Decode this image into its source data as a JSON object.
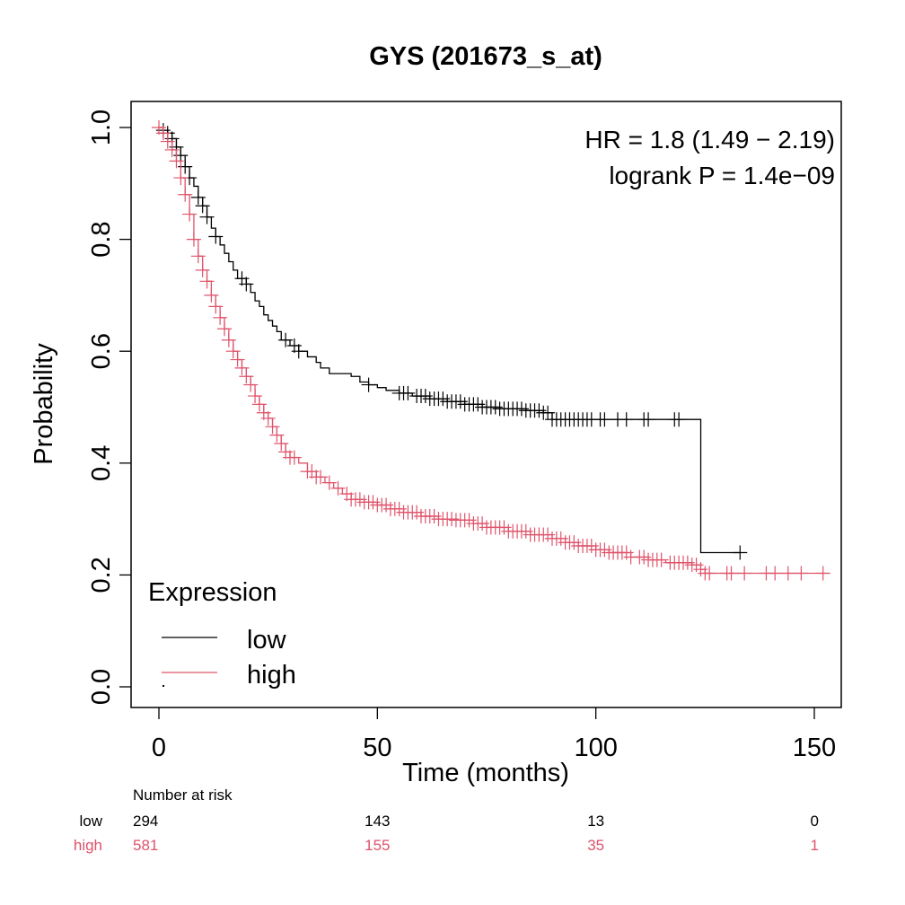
{
  "chart_data": {
    "type": "line",
    "subtype": "kaplan-meier",
    "title": "GYS (201673_s_at)",
    "xlabel": "Time (months)",
    "ylabel": "Probability",
    "xlim": [
      0,
      155
    ],
    "ylim": [
      0,
      1.0
    ],
    "x_ticks": [
      0,
      50,
      100,
      150
    ],
    "x_tick_labels": [
      "0",
      "50",
      "100",
      "150"
    ],
    "y_ticks": [
      0.0,
      0.2,
      0.4,
      0.6,
      0.8,
      1.0
    ],
    "y_tick_labels": [
      "0.0",
      "0.2",
      "0.4",
      "0.6",
      "0.8",
      "1.0"
    ],
    "grid": false,
    "annotations": {
      "hr": "HR = 1.8 (1.49 − 2.19)",
      "logrank": "logrank P = 1.4e−09"
    },
    "legend": {
      "title": "Expression",
      "position": "bottom-left",
      "entries": [
        {
          "label": "low",
          "color": "#000000"
        },
        {
          "label": "high",
          "color": "#DF536B"
        }
      ]
    },
    "series": [
      {
        "name": "low",
        "color": "#000000",
        "steps": [
          [
            0,
            1.0
          ],
          [
            1,
            0.995
          ],
          [
            2,
            0.99
          ],
          [
            3,
            0.98
          ],
          [
            4,
            0.965
          ],
          [
            5,
            0.95
          ],
          [
            6,
            0.93
          ],
          [
            7,
            0.91
          ],
          [
            8,
            0.895
          ],
          [
            9,
            0.875
          ],
          [
            10,
            0.86
          ],
          [
            11,
            0.84
          ],
          [
            12,
            0.82
          ],
          [
            13,
            0.805
          ],
          [
            14,
            0.79
          ],
          [
            15,
            0.775
          ],
          [
            16,
            0.76
          ],
          [
            17,
            0.745
          ],
          [
            18,
            0.73
          ],
          [
            20,
            0.72
          ],
          [
            21,
            0.705
          ],
          [
            22,
            0.69
          ],
          [
            23,
            0.68
          ],
          [
            24,
            0.665
          ],
          [
            25,
            0.655
          ],
          [
            26,
            0.645
          ],
          [
            27,
            0.635
          ],
          [
            28,
            0.62
          ],
          [
            30,
            0.61
          ],
          [
            32,
            0.6
          ],
          [
            34,
            0.59
          ],
          [
            36,
            0.58
          ],
          [
            37,
            0.57
          ],
          [
            39,
            0.56
          ],
          [
            44,
            0.555
          ],
          [
            46,
            0.545
          ],
          [
            48,
            0.54
          ],
          [
            50,
            0.535
          ],
          [
            52,
            0.53
          ],
          [
            55,
            0.525
          ],
          [
            58,
            0.52
          ],
          [
            62,
            0.515
          ],
          [
            66,
            0.51
          ],
          [
            70,
            0.505
          ],
          [
            74,
            0.5
          ],
          [
            78,
            0.497
          ],
          [
            84,
            0.494
          ],
          [
            88,
            0.49
          ],
          [
            90,
            0.478
          ],
          [
            124,
            0.478
          ],
          [
            124.01,
            0.24
          ],
          [
            133,
            0.24
          ]
        ],
        "censor_times": [
          1,
          2,
          3,
          4,
          5,
          6,
          7,
          9,
          10,
          11,
          13,
          19,
          20,
          29,
          31,
          32,
          48,
          55,
          56,
          57,
          59,
          60,
          61,
          62,
          63,
          64,
          65,
          66,
          67,
          68,
          69,
          70,
          71,
          72,
          73,
          74,
          75,
          76,
          77,
          78,
          79,
          80,
          81,
          82,
          83,
          84,
          85,
          86,
          87,
          88,
          89,
          90,
          91,
          92,
          93,
          94,
          95,
          96,
          97,
          98,
          99,
          101,
          102,
          105,
          107,
          111,
          112,
          118,
          119,
          133
        ]
      },
      {
        "name": "high",
        "color": "#DF536B",
        "steps": [
          [
            0,
            1.0
          ],
          [
            1,
            0.99
          ],
          [
            2,
            0.975
          ],
          [
            3,
            0.96
          ],
          [
            4,
            0.94
          ],
          [
            5,
            0.91
          ],
          [
            6,
            0.88
          ],
          [
            7,
            0.845
          ],
          [
            8,
            0.8
          ],
          [
            9,
            0.77
          ],
          [
            10,
            0.745
          ],
          [
            11,
            0.725
          ],
          [
            12,
            0.7
          ],
          [
            13,
            0.68
          ],
          [
            14,
            0.66
          ],
          [
            15,
            0.64
          ],
          [
            16,
            0.62
          ],
          [
            17,
            0.6
          ],
          [
            18,
            0.585
          ],
          [
            19,
            0.57
          ],
          [
            20,
            0.555
          ],
          [
            21,
            0.54
          ],
          [
            22,
            0.52
          ],
          [
            23,
            0.505
          ],
          [
            24,
            0.49
          ],
          [
            25,
            0.48
          ],
          [
            26,
            0.465
          ],
          [
            27,
            0.45
          ],
          [
            28,
            0.435
          ],
          [
            29,
            0.42
          ],
          [
            30,
            0.41
          ],
          [
            32,
            0.4
          ],
          [
            34,
            0.385
          ],
          [
            36,
            0.375
          ],
          [
            38,
            0.365
          ],
          [
            40,
            0.355
          ],
          [
            42,
            0.345
          ],
          [
            44,
            0.335
          ],
          [
            47,
            0.33
          ],
          [
            50,
            0.325
          ],
          [
            53,
            0.318
          ],
          [
            56,
            0.312
          ],
          [
            60,
            0.305
          ],
          [
            64,
            0.3
          ],
          [
            68,
            0.298
          ],
          [
            72,
            0.292
          ],
          [
            75,
            0.285
          ],
          [
            80,
            0.278
          ],
          [
            85,
            0.272
          ],
          [
            90,
            0.265
          ],
          [
            93,
            0.258
          ],
          [
            96,
            0.252
          ],
          [
            100,
            0.245
          ],
          [
            103,
            0.24
          ],
          [
            108,
            0.232
          ],
          [
            112,
            0.227
          ],
          [
            116,
            0.222
          ],
          [
            122,
            0.218
          ],
          [
            124,
            0.21
          ],
          [
            125,
            0.203
          ],
          [
            153,
            0.203
          ]
        ],
        "censor_times": [
          0,
          1,
          2,
          3,
          4,
          5,
          6,
          7,
          8,
          9,
          10,
          11,
          12,
          13,
          14,
          15,
          16,
          17,
          18,
          19,
          20,
          21,
          22,
          23,
          24,
          25,
          26,
          27,
          28,
          29,
          30,
          31,
          34,
          35,
          36,
          37,
          39,
          41,
          43,
          44,
          45,
          46,
          47,
          48,
          49,
          50,
          51,
          52,
          53,
          54,
          55,
          56,
          57,
          58,
          59,
          60,
          61,
          62,
          63,
          64,
          65,
          66,
          67,
          68,
          69,
          70,
          71,
          72,
          73,
          74,
          75,
          76,
          77,
          78,
          79,
          80,
          81,
          82,
          83,
          84,
          85,
          86,
          87,
          88,
          89,
          90,
          91,
          92,
          93,
          94,
          95,
          96,
          97,
          98,
          99,
          100,
          101,
          102,
          103,
          104,
          105,
          106,
          107,
          108,
          110,
          111,
          112,
          113,
          114,
          115,
          117,
          118,
          119,
          120,
          121,
          122,
          123,
          124,
          125,
          126,
          130,
          131,
          134,
          139,
          141,
          144,
          147,
          152
        ]
      }
    ],
    "risk_table": {
      "header": "Number at risk",
      "times": [
        0,
        50,
        100,
        150
      ],
      "rows": [
        {
          "label": "low",
          "color": "#000000",
          "values": [
            "294",
            "143",
            "13",
            "0"
          ]
        },
        {
          "label": "high",
          "color": "#DF536B",
          "values": [
            "581",
            "155",
            "35",
            "1"
          ]
        }
      ]
    }
  }
}
